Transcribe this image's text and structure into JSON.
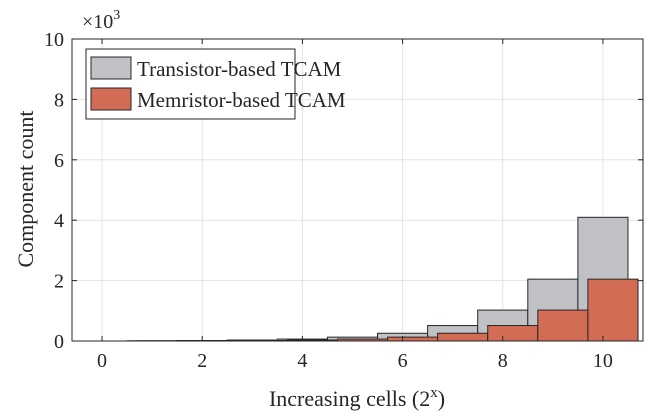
{
  "chart_data": {
    "type": "bar",
    "xlabel": "Increasing cells (2",
    "xlabel_superscript": "x",
    "xlabel_suffix": ")",
    "ylabel": "Component count",
    "exponent_label": "×10",
    "exponent_power": "3",
    "xlim": [
      -0.6,
      10.8
    ],
    "ylim": [
      0,
      10
    ],
    "x_ticks": [
      "0",
      "2",
      "4",
      "6",
      "8",
      "10"
    ],
    "x_tick_values": [
      0,
      2,
      4,
      6,
      8,
      10
    ],
    "y_ticks": [
      "0",
      "2",
      "4",
      "6",
      "8",
      "10"
    ],
    "y_tick_values": [
      0,
      2,
      4,
      6,
      8,
      10
    ],
    "grid": true,
    "legend_position": "top-left",
    "series": [
      {
        "name": "Transistor-based TCAM",
        "color": "#c0c1c5",
        "x": [
          0,
          1,
          2,
          3,
          4,
          5,
          6,
          7,
          8,
          9
        ],
        "values": [
          0.008,
          0.016,
          0.032,
          0.064,
          0.128,
          0.256,
          0.512,
          1.024,
          2.048,
          4.096
        ],
        "bar_width": 1.0,
        "offset": 0.5
      },
      {
        "name": "Memristor-based TCAM",
        "color": "#d36c55",
        "x": [
          0,
          1,
          2,
          3,
          4,
          5,
          6,
          7,
          8,
          9
        ],
        "values": [
          0.004,
          0.008,
          0.016,
          0.032,
          0.064,
          0.128,
          0.256,
          0.512,
          1.024,
          2.048
        ],
        "bar_width": 1.0,
        "offset": 0.7
      }
    ]
  }
}
